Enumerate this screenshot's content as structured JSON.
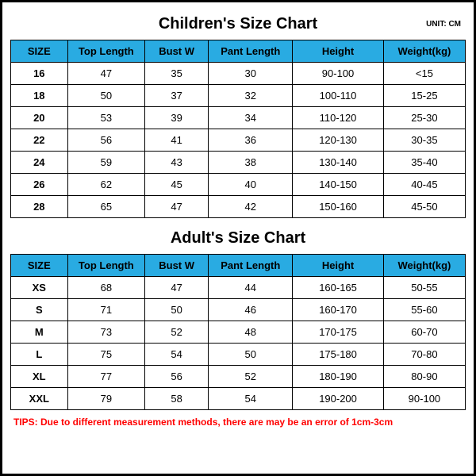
{
  "colors": {
    "header_bg": "#29abe2",
    "border": "#000000",
    "background": "#ffffff",
    "text": "#000000",
    "tips_color": "#ff0000"
  },
  "layout": {
    "col_widths_pct": [
      12.5,
      17,
      14,
      18.5,
      20,
      18
    ]
  },
  "unit_label": "UNIT: CM",
  "children": {
    "title": "Children's Size Chart",
    "columns": [
      "SIZE",
      "Top Length",
      "Bust W",
      "Pant Length",
      "Height",
      "Weight(kg)"
    ],
    "rows": [
      [
        "16",
        "47",
        "35",
        "30",
        "90-100",
        "<15"
      ],
      [
        "18",
        "50",
        "37",
        "32",
        "100-110",
        "15-25"
      ],
      [
        "20",
        "53",
        "39",
        "34",
        "110-120",
        "25-30"
      ],
      [
        "22",
        "56",
        "41",
        "36",
        "120-130",
        "30-35"
      ],
      [
        "24",
        "59",
        "43",
        "38",
        "130-140",
        "35-40"
      ],
      [
        "26",
        "62",
        "45",
        "40",
        "140-150",
        "40-45"
      ],
      [
        "28",
        "65",
        "47",
        "42",
        "150-160",
        "45-50"
      ]
    ]
  },
  "adult": {
    "title": "Adult's Size Chart",
    "columns": [
      "SIZE",
      "Top Length",
      "Bust W",
      "Pant Length",
      "Height",
      "Weight(kg)"
    ],
    "rows": [
      [
        "XS",
        "68",
        "47",
        "44",
        "160-165",
        "50-55"
      ],
      [
        "S",
        "71",
        "50",
        "46",
        "160-170",
        "55-60"
      ],
      [
        "M",
        "73",
        "52",
        "48",
        "170-175",
        "60-70"
      ],
      [
        "L",
        "75",
        "54",
        "50",
        "175-180",
        "70-80"
      ],
      [
        "XL",
        "77",
        "56",
        "52",
        "180-190",
        "80-90"
      ],
      [
        "XXL",
        "79",
        "58",
        "54",
        "190-200",
        "90-100"
      ]
    ]
  },
  "tips": "TIPS: Due to different measurement methods, there are may be an error of 1cm-3cm"
}
